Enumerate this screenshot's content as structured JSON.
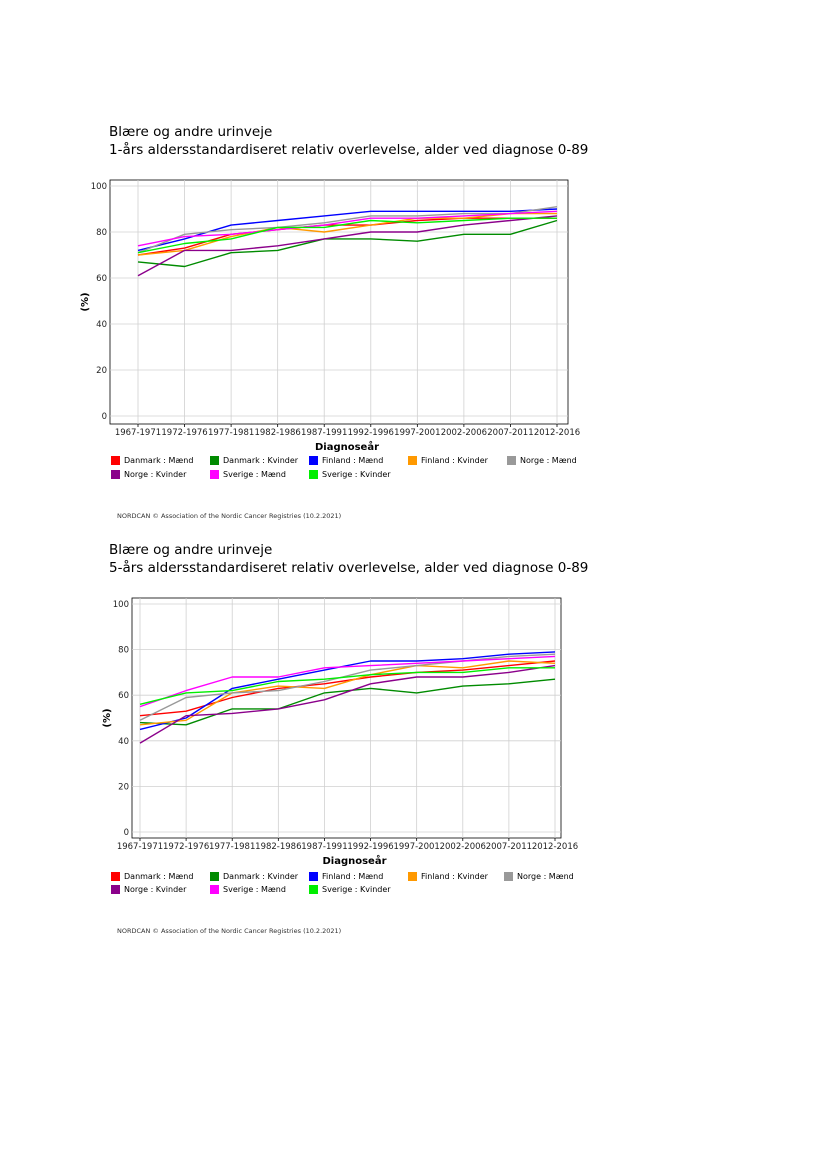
{
  "legend_items": [
    {
      "label": "Danmark : Mænd",
      "color": "#ff0000"
    },
    {
      "label": "Danmark : Kvinder",
      "color": "#008b00"
    },
    {
      "label": "Finland : Mænd",
      "color": "#0000ff"
    },
    {
      "label": "Finland : Kvinder",
      "color": "#ff9900"
    },
    {
      "label": "Norge : Mænd",
      "color": "#999999"
    },
    {
      "label": "Norge : Kvinder",
      "color": "#8b008b"
    },
    {
      "label": "Sverige : Mænd",
      "color": "#ff00ff"
    },
    {
      "label": "Sverige : Kvinder",
      "color": "#00ee00"
    }
  ],
  "footer": "NORDCAN © Association of the Nordic Cancer Registries (10.2.2021)",
  "chart_data": [
    {
      "type": "line",
      "title": "Blære og andre urinveje",
      "subtitle": "1-års aldersstandardiseret relativ overlevelse, alder ved diagnose 0-89",
      "xlabel": "Diagnoseår",
      "ylabel": "(%)",
      "ylim": [
        0,
        100
      ],
      "yticks": [
        0,
        20,
        40,
        60,
        80,
        100
      ],
      "grid": true,
      "legend_position": "bottom",
      "categories": [
        "1967-1971",
        "1972-1976",
        "1977-1981",
        "1982-1986",
        "1987-1991",
        "1992-1996",
        "1997-2001",
        "2002-2006",
        "2007-2011",
        "2012-2016"
      ],
      "series": [
        {
          "name": "Danmark : Mænd",
          "color": "#ff0000",
          "values": [
            70,
            73,
            79,
            81,
            83,
            83,
            85,
            86,
            86,
            86
          ]
        },
        {
          "name": "Danmark : Kvinder",
          "color": "#008b00",
          "values": [
            67,
            65,
            71,
            72,
            77,
            77,
            76,
            79,
            79,
            85
          ]
        },
        {
          "name": "Finland : Mænd",
          "color": "#0000ff",
          "values": [
            72,
            77,
            83,
            85,
            87,
            89,
            89,
            89,
            89,
            90
          ]
        },
        {
          "name": "Finland : Kvinder",
          "color": "#ff9900",
          "values": [
            70,
            72,
            78,
            82,
            80,
            83,
            86,
            86,
            88,
            88
          ]
        },
        {
          "name": "Norge : Mænd",
          "color": "#999999",
          "values": [
            71,
            79,
            81,
            82,
            84,
            87,
            87,
            88,
            88,
            91
          ]
        },
        {
          "name": "Norge : Kvinder",
          "color": "#8b008b",
          "values": [
            61,
            72,
            72,
            74,
            77,
            80,
            80,
            83,
            85,
            87
          ]
        },
        {
          "name": "Sverige : Mænd",
          "color": "#ff00ff",
          "values": [
            74,
            78,
            79,
            81,
            83,
            86,
            86,
            87,
            88,
            89
          ]
        },
        {
          "name": "Sverige : Kvinder",
          "color": "#00ee00",
          "values": [
            71,
            75,
            77,
            82,
            82,
            85,
            84,
            85,
            86,
            86
          ]
        }
      ]
    },
    {
      "type": "line",
      "title": "Blære og andre urinveje",
      "subtitle": "5-års aldersstandardiseret relativ overlevelse, alder ved diagnose 0-89",
      "xlabel": "Diagnoseår",
      "ylabel": "(%)",
      "ylim": [
        0,
        100
      ],
      "yticks": [
        0,
        20,
        40,
        60,
        80,
        100
      ],
      "grid": true,
      "legend_position": "bottom",
      "categories": [
        "1967-1971",
        "1972-1976",
        "1977-1981",
        "1982-1986",
        "1987-1991",
        "1992-1996",
        "1997-2001",
        "2002-2006",
        "2007-2011",
        "2012-2016"
      ],
      "series": [
        {
          "name": "Danmark : Mænd",
          "color": "#ff0000",
          "values": [
            51,
            53,
            59,
            63,
            65,
            68,
            70,
            71,
            73,
            75
          ]
        },
        {
          "name": "Danmark : Kvinder",
          "color": "#008b00",
          "values": [
            48,
            47,
            54,
            54,
            61,
            63,
            61,
            64,
            65,
            67
          ]
        },
        {
          "name": "Finland : Mænd",
          "color": "#0000ff",
          "values": [
            45,
            50,
            63,
            67,
            71,
            75,
            75,
            76,
            78,
            79
          ]
        },
        {
          "name": "Finland : Kvinder",
          "color": "#ff9900",
          "values": [
            47,
            49,
            61,
            64,
            63,
            69,
            73,
            72,
            75,
            74
          ]
        },
        {
          "name": "Norge : Mænd",
          "color": "#999999",
          "values": [
            49,
            59,
            61,
            62,
            66,
            71,
            73,
            75,
            77,
            78
          ]
        },
        {
          "name": "Norge : Kvinder",
          "color": "#8b008b",
          "values": [
            39,
            51,
            52,
            54,
            58,
            65,
            68,
            68,
            70,
            73
          ]
        },
        {
          "name": "Sverige : Mænd",
          "color": "#ff00ff",
          "values": [
            55,
            62,
            68,
            68,
            72,
            73,
            74,
            75,
            76,
            77
          ]
        },
        {
          "name": "Sverige : Kvinder",
          "color": "#00ee00",
          "values": [
            56,
            61,
            62,
            66,
            67,
            69,
            70,
            70,
            72,
            72
          ]
        }
      ]
    }
  ]
}
